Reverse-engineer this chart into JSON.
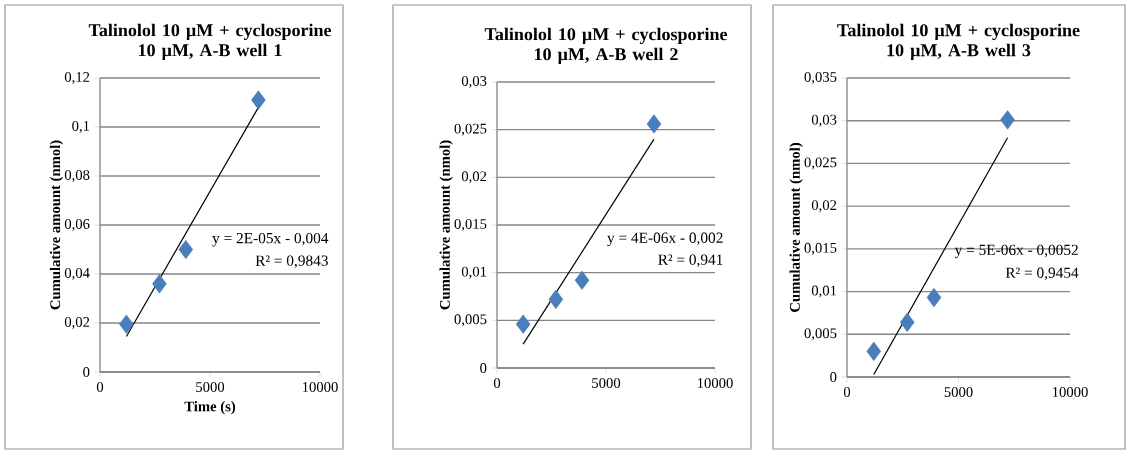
{
  "chart_data": [
    {
      "type": "scatter",
      "title": "Talinolol 10 µM + cyclosporine 10 µM, A-B well 1",
      "xlabel": "Time (s)",
      "ylabel": "Cumulative amount (nmol)",
      "series": [
        {
          "color": "#4a7ebb",
          "marker": "diamond",
          "x": [
            1200,
            2700,
            3900,
            7200
          ],
          "values": [
            0.0195,
            0.036,
            0.05,
            0.111
          ]
        },
        {
          "type": "line",
          "color": "#000000",
          "marker": "none",
          "x": [
            1200,
            7200
          ],
          "values": [
            0.0145,
            0.108
          ]
        }
      ],
      "xlim": [
        0,
        10000
      ],
      "xticks": [
        0,
        5000,
        10000
      ],
      "ylim": [
        0,
        0.12
      ],
      "yticks": [
        {
          "value": 0,
          "label": "0"
        },
        {
          "value": 0.02,
          "label": "0,02"
        },
        {
          "value": 0.04,
          "label": "0,04"
        },
        {
          "value": 0.06,
          "label": "0,06"
        },
        {
          "value": 0.08,
          "label": "0,08"
        },
        {
          "value": 0.1,
          "label": "0,1"
        },
        {
          "value": 0.12,
          "label": "0,12"
        }
      ],
      "grid": "y",
      "annotations": [
        "y = 2E-05x - 0,004",
        "R² = 0,9843"
      ]
    },
    {
      "type": "scatter",
      "title": "Talinolol 10 µM + cyclosporine 10 µM, A-B well 2",
      "ylabel": "Cumulative amount (nmol)",
      "series": [
        {
          "color": "#4a7ebb",
          "marker": "diamond",
          "x": [
            1200,
            2700,
            3900,
            7200
          ],
          "values": [
            0.0046,
            0.0072,
            0.0092,
            0.0256
          ]
        },
        {
          "type": "line",
          "color": "#000000",
          "marker": "none",
          "x": [
            1200,
            7200
          ],
          "values": [
            0.0025,
            0.024
          ]
        }
      ],
      "xlim": [
        0,
        10000
      ],
      "xticks": [
        0,
        5000,
        10000
      ],
      "ylim": [
        0,
        0.03
      ],
      "yticks": [
        {
          "value": 0,
          "label": "0"
        },
        {
          "value": 0.005,
          "label": "0,005"
        },
        {
          "value": 0.01,
          "label": "0,01"
        },
        {
          "value": 0.015,
          "label": "0,015"
        },
        {
          "value": 0.02,
          "label": "0,02"
        },
        {
          "value": 0.025,
          "label": "0,025"
        },
        {
          "value": 0.03,
          "label": "0,03"
        }
      ],
      "grid": "y",
      "annotations": [
        "y = 4E-06x - 0,002",
        "R² = 0,941"
      ]
    },
    {
      "type": "scatter",
      "title": "Talinolol 10 µM + cyclosporine 10 µM, A-B well 3",
      "ylabel": "Cumulative amount (nmol)",
      "series": [
        {
          "color": "#4a7ebb",
          "marker": "diamond",
          "x": [
            1200,
            2700,
            3900,
            7200
          ],
          "values": [
            0.003,
            0.0064,
            0.0093,
            0.0301
          ]
        },
        {
          "type": "line",
          "color": "#000000",
          "marker": "none",
          "x": [
            1200,
            7200
          ],
          "values": [
            0.0003,
            0.028
          ]
        }
      ],
      "xlim": [
        0,
        10000
      ],
      "xticks": [
        0,
        5000,
        10000
      ],
      "ylim": [
        0,
        0.035
      ],
      "yticks": [
        {
          "value": 0,
          "label": "0"
        },
        {
          "value": 0.005,
          "label": "0,005"
        },
        {
          "value": 0.01,
          "label": "0,01"
        },
        {
          "value": 0.015,
          "label": "0,015"
        },
        {
          "value": 0.02,
          "label": "0,02"
        },
        {
          "value": 0.025,
          "label": "0,025"
        },
        {
          "value": 0.03,
          "label": "0,03"
        },
        {
          "value": 0.035,
          "label": "0,035"
        }
      ],
      "grid": "y",
      "annotations": [
        "y = 5E-06x - 0,0052",
        "R² = 0,9454"
      ]
    }
  ]
}
